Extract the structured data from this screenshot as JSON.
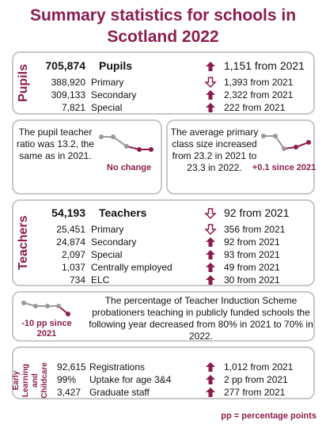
{
  "title": "Summary statistics for schools in Scotland 2022",
  "pupils": {
    "label": "Pupils",
    "rows": [
      [
        "705,874",
        "Pupils",
        "1,151 from 2021"
      ],
      [
        "388,920",
        "Primary",
        "1,393 from 2021"
      ],
      [
        "309,133",
        "Secondary",
        "2,322 from 2021"
      ],
      [
        "7,821",
        "Special",
        "222 from 2021"
      ]
    ]
  },
  "ratio": {
    "text": "The pupil teacher ratio was 13.2, the same as in 2021.",
    "note": "No change"
  },
  "class_size": {
    "text": "The average primary class size increased from 23.2 in 2021 to 23.3 in 2022.",
    "note": "+0.1 since 2021"
  },
  "teachers": {
    "label": "Teachers",
    "rows": [
      [
        "54,193",
        "Teachers",
        "92 from 2021"
      ],
      [
        "25,451",
        "Primary",
        "356 from 2021"
      ],
      [
        "24,874",
        "Secondary",
        "92 from 2021"
      ],
      [
        "2,097",
        "Special",
        "93 from 2021"
      ],
      [
        "1,037",
        "Centrally employed",
        "49 from 2021"
      ],
      [
        "734",
        "ELC",
        "30 from 2021"
      ]
    ]
  },
  "induction": {
    "note": "-10 pp since 2021",
    "text": "The percentage of Teacher Induction Scheme probationers teaching in publicly funded schools the following year decreased from 80% in 2021 to 70% in 2022."
  },
  "elc": {
    "label": "Early Learning and Childcare",
    "rows": [
      [
        "92,615",
        "Registrations",
        "1,012 from 2021"
      ],
      [
        "99%",
        "Uptake for age 3&4",
        "2 pp from 2021"
      ],
      [
        "3,427",
        "Graduate staff",
        "277 from 2021"
      ]
    ]
  },
  "footnote": "pp = percentage points"
}
